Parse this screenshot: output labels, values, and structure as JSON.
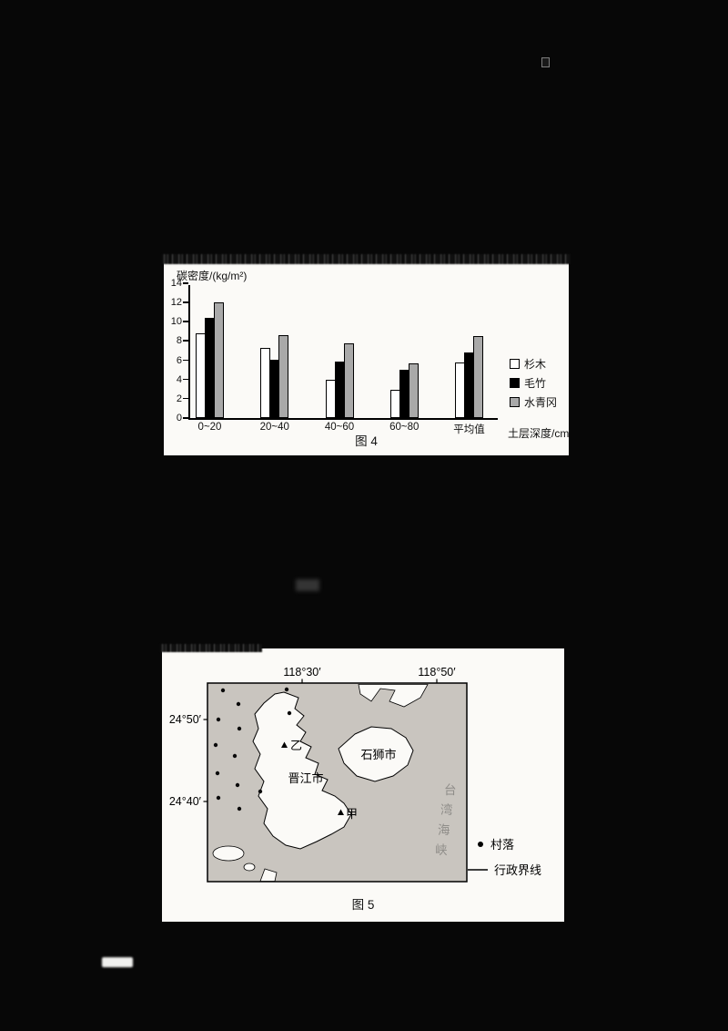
{
  "document": {
    "fig4_caption": "图 4",
    "fig5_caption": "图 5"
  },
  "chart_data": {
    "type": "bar",
    "title": "",
    "ylabel": "碳密度/(kg/m²)",
    "xlabel": "土层深度/cm",
    "ylim": [
      0,
      14
    ],
    "yticks": [
      0,
      2,
      4,
      6,
      8,
      10,
      12,
      14
    ],
    "categories": [
      "0~20",
      "20~40",
      "40~60",
      "60~80",
      "平均值"
    ],
    "series": [
      {
        "name": "杉木",
        "color": "#ffffff",
        "values": [
          8.8,
          7.3,
          4.0,
          2.9,
          5.8
        ]
      },
      {
        "name": "毛竹",
        "color": "#000000",
        "values": [
          10.4,
          6.1,
          5.9,
          5.0,
          6.8
        ]
      },
      {
        "name": "水青冈",
        "color": "#a9a9a9",
        "values": [
          12.0,
          8.6,
          7.8,
          5.7,
          8.5
        ]
      }
    ],
    "legend_position": "right",
    "grid": false,
    "bar_border_color": "#000000"
  },
  "map_data": {
    "lon_ticks": [
      "118°30′",
      "118°50′"
    ],
    "lat_ticks": [
      "24°50′",
      "24°40′"
    ],
    "regions": {
      "jinjiang": "晋江市",
      "shishi": "石狮市"
    },
    "points": {
      "yi": "乙",
      "jia": "甲"
    },
    "sea_label": "台湾海峡",
    "sea_chars": [
      "台",
      "湾",
      "海",
      "峡"
    ],
    "legend": [
      {
        "symbol": "dot",
        "label": "村落"
      },
      {
        "symbol": "line",
        "label": "行政界线"
      }
    ]
  }
}
